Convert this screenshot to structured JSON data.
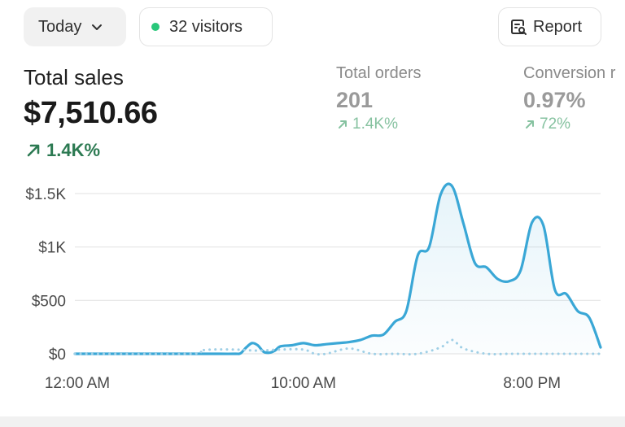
{
  "header": {
    "period_label": "Today",
    "visitors_label": "32 visitors",
    "report_label": "Report"
  },
  "metrics": {
    "total_sales": {
      "label": "Total sales",
      "value": "$7,510.66",
      "delta": "1.4K%"
    },
    "total_orders": {
      "label": "Total orders",
      "value": "201",
      "delta": "1.4K%"
    },
    "conversion": {
      "label": "Conversion r",
      "value": "0.97%",
      "delta": "72%"
    }
  },
  "colors": {
    "primary_line": "#3aa7d6",
    "comparison_line": "#9fcfe6",
    "positive": "#2c7a52",
    "positive_muted": "#86c2a0",
    "live_dot": "#29c77a"
  },
  "icons": {
    "period_dropdown": "chevron-down-icon",
    "visitors_dot": "live-dot-icon",
    "report": "report-icon",
    "delta": "arrow-up-right-icon"
  },
  "chart_data": {
    "type": "line",
    "xlabel": "",
    "ylabel": "",
    "x_tick_labels": [
      "12:00 AM",
      "10:00 AM",
      "8:00 PM"
    ],
    "x_tick_hours": [
      0,
      10,
      20
    ],
    "y_tick_labels": [
      "$1.5K",
      "$1K",
      "$500",
      "$0"
    ],
    "y_tick_values": [
      1500,
      1000,
      500,
      0
    ],
    "ylim": [
      0,
      1500
    ],
    "xlim": [
      0,
      23
    ],
    "grid": true,
    "series": [
      {
        "style": "solid",
        "x": [
          0,
          5,
          6,
          7,
          7.25,
          7.5,
          7.75,
          8,
          8.25,
          8.5,
          8.75,
          9,
          9.5,
          10,
          10.5,
          11,
          11.5,
          12,
          12.5,
          13,
          13.5,
          14,
          14.5,
          15,
          15.5,
          16,
          16.5,
          17,
          17.5,
          18,
          18.5,
          19,
          19.5,
          20,
          20.5,
          21,
          21.5,
          22,
          22.5,
          23
        ],
        "y": [
          0,
          0,
          0,
          0,
          5,
          60,
          100,
          80,
          20,
          10,
          30,
          70,
          80,
          100,
          80,
          90,
          100,
          110,
          130,
          170,
          180,
          300,
          400,
          920,
          1000,
          1490,
          1570,
          1220,
          850,
          810,
          700,
          680,
          780,
          1230,
          1200,
          600,
          560,
          400,
          340,
          60
        ]
      },
      {
        "style": "dotted",
        "x": [
          0,
          5,
          5.5,
          6,
          7,
          8,
          9,
          10,
          10.5,
          11,
          12,
          13,
          14,
          15,
          16,
          16.5,
          17,
          18,
          19,
          20,
          21,
          22,
          23
        ],
        "y": [
          0,
          0,
          30,
          40,
          40,
          30,
          40,
          40,
          0,
          0,
          50,
          0,
          0,
          0,
          60,
          130,
          50,
          0,
          0,
          0,
          0,
          0,
          0
        ]
      }
    ]
  }
}
